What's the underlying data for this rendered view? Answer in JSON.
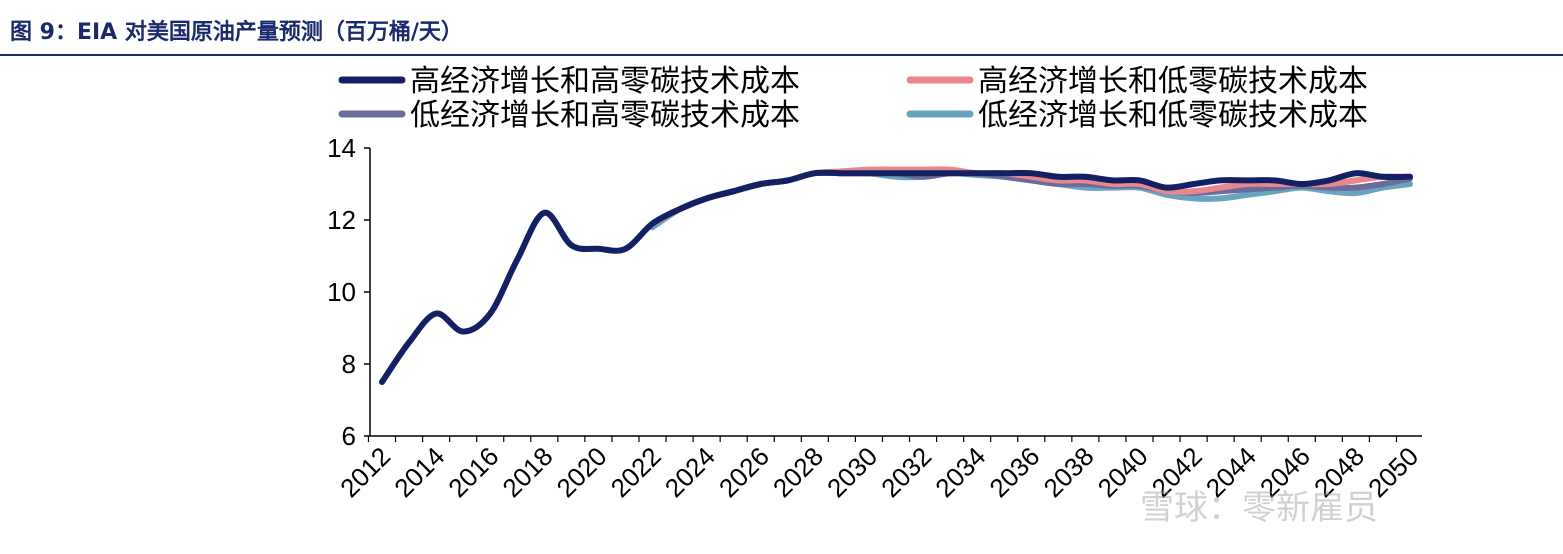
{
  "figure": {
    "title": "图 9：EIA 对美国原油产量预测（百万桶/天）"
  },
  "watermark": {
    "text": "雪球：零新雇员"
  },
  "chart_data": {
    "type": "line",
    "title": "",
    "xlabel": "",
    "ylabel": "",
    "ylim": [
      6,
      14
    ],
    "yticks": [
      6,
      8,
      10,
      12,
      14
    ],
    "xlim": [
      2012,
      2050
    ],
    "xticks": [
      2012,
      2014,
      2016,
      2018,
      2020,
      2022,
      2024,
      2026,
      2028,
      2030,
      2032,
      2034,
      2036,
      2038,
      2040,
      2042,
      2044,
      2046,
      2048,
      2050
    ],
    "legend_placement": "top",
    "grid": false,
    "series": [
      {
        "name": "高经济增长和高零碳技术成本",
        "color": "#142064",
        "x": [
          2012,
          2013,
          2014,
          2015,
          2016,
          2017,
          2018,
          2019,
          2020,
          2021,
          2022,
          2023,
          2024,
          2025,
          2026,
          2027,
          2028,
          2029,
          2030,
          2031,
          2032,
          2033,
          2034,
          2035,
          2036,
          2037,
          2038,
          2039,
          2040,
          2041,
          2042,
          2043,
          2044,
          2045,
          2046,
          2047,
          2048,
          2049,
          2050
        ],
        "values": [
          7.5,
          8.6,
          9.4,
          8.9,
          9.4,
          10.9,
          12.2,
          11.3,
          11.2,
          11.2,
          11.9,
          12.3,
          12.6,
          12.8,
          13.0,
          13.1,
          13.3,
          13.3,
          13.3,
          13.3,
          13.3,
          13.3,
          13.3,
          13.3,
          13.3,
          13.2,
          13.2,
          13.1,
          13.1,
          12.9,
          13.0,
          13.1,
          13.1,
          13.1,
          13.0,
          13.1,
          13.3,
          13.2,
          13.2
        ]
      },
      {
        "name": "高经济增长和低零碳技术成本",
        "color": "#e8888a",
        "x": [
          2022,
          2023,
          2024,
          2025,
          2026,
          2027,
          2028,
          2029,
          2030,
          2031,
          2032,
          2033,
          2034,
          2035,
          2036,
          2037,
          2038,
          2039,
          2040,
          2041,
          2042,
          2043,
          2044,
          2045,
          2046,
          2047,
          2048,
          2049,
          2050
        ],
        "values": [
          11.9,
          12.3,
          12.6,
          12.8,
          13.0,
          13.1,
          13.3,
          13.35,
          13.4,
          13.4,
          13.4,
          13.4,
          13.3,
          13.3,
          13.2,
          13.1,
          13.1,
          13.0,
          13.0,
          12.8,
          12.8,
          12.9,
          13.0,
          13.0,
          13.0,
          13.0,
          13.1,
          13.2,
          13.2
        ]
      },
      {
        "name": "低经济增长和高零碳技术成本",
        "color": "#6b6c9c",
        "x": [
          2022,
          2023,
          2024,
          2025,
          2026,
          2027,
          2028,
          2029,
          2030,
          2031,
          2032,
          2033,
          2034,
          2035,
          2036,
          2037,
          2038,
          2039,
          2040,
          2041,
          2042,
          2043,
          2044,
          2045,
          2046,
          2047,
          2048,
          2049,
          2050
        ],
        "values": [
          11.9,
          12.3,
          12.6,
          12.8,
          13.0,
          13.1,
          13.3,
          13.3,
          13.3,
          13.3,
          13.2,
          13.3,
          13.3,
          13.2,
          13.1,
          13.0,
          13.0,
          12.95,
          12.95,
          12.8,
          12.75,
          12.8,
          12.85,
          12.9,
          12.95,
          12.9,
          12.9,
          13.0,
          13.15
        ]
      },
      {
        "name": "低经济增长和低零碳技术成本",
        "color": "#6aa3c0",
        "x": [
          2022,
          2023,
          2024,
          2025,
          2026,
          2027,
          2028,
          2029,
          2030,
          2031,
          2032,
          2033,
          2034,
          2035,
          2036,
          2037,
          2038,
          2039,
          2040,
          2041,
          2042,
          2043,
          2044,
          2045,
          2046,
          2047,
          2048,
          2049,
          2050
        ],
        "values": [
          11.8,
          12.3,
          12.6,
          12.8,
          13.0,
          13.1,
          13.3,
          13.3,
          13.3,
          13.2,
          13.2,
          13.3,
          13.25,
          13.2,
          13.1,
          13.0,
          12.9,
          12.9,
          12.9,
          12.7,
          12.6,
          12.6,
          12.7,
          12.8,
          12.9,
          12.8,
          12.75,
          12.9,
          13.0
        ]
      }
    ]
  }
}
